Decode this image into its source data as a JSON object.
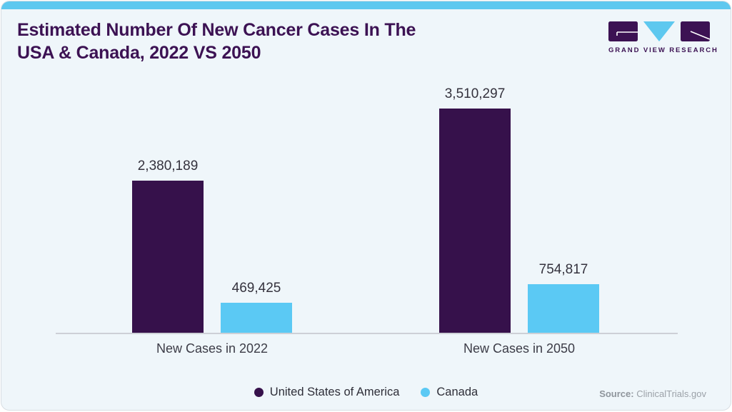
{
  "header": {
    "title_lines": [
      "Estimated Number Of New Cancer Cases In The",
      "USA & Canada, 2022 VS 2050"
    ]
  },
  "logo": {
    "name": "GRAND VIEW RESEARCH",
    "purple": "#3c1253",
    "blue": "#5ec8ef"
  },
  "colors": {
    "background": "#eff6fa",
    "top_strip": "#5ec8ef",
    "usa_bar": "#36114b",
    "canada_bar": "#5bc9f4",
    "axis_line": "#cdd0d6"
  },
  "chart_data": {
    "type": "bar",
    "title": "Estimated Number Of New Cancer Cases In The USA & Canada, 2022 VS 2050",
    "categories": [
      "New Cases in 2022",
      "New Cases in 2050"
    ],
    "series": [
      {
        "name": "United States of America",
        "color": "#36114b",
        "values": [
          2380189,
          3510297
        ],
        "formatted_values": [
          "2,380,189",
          "3,510,297"
        ]
      },
      {
        "name": "Canada",
        "color": "#5bc9f4",
        "values": [
          469425,
          754817
        ],
        "formatted_values": [
          "469,425",
          "754,817"
        ]
      }
    ],
    "xlabel": "",
    "ylabel": "",
    "ylim": [
      0,
      3510297
    ],
    "grid": false,
    "legend_position": "bottom",
    "data_labels": true
  },
  "source": {
    "label": "Source:",
    "value": "ClinicalTrials.gov"
  }
}
